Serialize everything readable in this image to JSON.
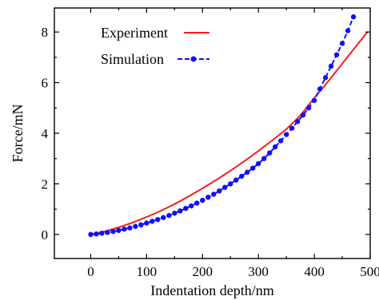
{
  "chart_data": {
    "type": "line",
    "xlabel": "Indentation depth/nm",
    "ylabel": "Force/mN",
    "xlim": [
      -65,
      500
    ],
    "ylim": [
      -0.95,
      8.95
    ],
    "x_ticks": [
      0,
      100,
      200,
      300,
      400,
      500
    ],
    "y_ticks": [
      0,
      2,
      4,
      6,
      8
    ],
    "grid": false,
    "legend_position": "top-left",
    "series": [
      {
        "name": "Experiment",
        "color": "#ff1a1a",
        "style": "solid-line",
        "x": [
          0,
          25,
          50,
          75,
          100,
          125,
          150,
          175,
          200,
          225,
          250,
          275,
          300,
          325,
          350,
          375,
          400,
          425,
          450,
          475,
          495
        ],
        "y": [
          0.0,
          0.12,
          0.28,
          0.47,
          0.69,
          0.93,
          1.2,
          1.5,
          1.82,
          2.16,
          2.52,
          2.9,
          3.3,
          3.72,
          4.16,
          4.7,
          5.4,
          6.05,
          6.75,
          7.45,
          8.0
        ]
      },
      {
        "name": "Simulation",
        "color": "#1010ff",
        "style": "dashed-line-with-dots",
        "x": [
          0,
          10,
          20,
          30,
          40,
          50,
          60,
          70,
          80,
          90,
          100,
          110,
          120,
          130,
          140,
          150,
          160,
          170,
          180,
          190,
          200,
          210,
          220,
          230,
          240,
          250,
          260,
          270,
          280,
          290,
          300,
          310,
          320,
          330,
          340,
          350,
          360,
          370,
          380,
          390,
          400,
          410,
          420,
          430,
          440,
          450,
          460,
          470
        ],
        "y": [
          0.0,
          0.02,
          0.05,
          0.08,
          0.12,
          0.16,
          0.21,
          0.26,
          0.32,
          0.38,
          0.45,
          0.52,
          0.59,
          0.67,
          0.75,
          0.84,
          0.93,
          1.03,
          1.13,
          1.24,
          1.35,
          1.47,
          1.59,
          1.72,
          1.86,
          2.0,
          2.15,
          2.3,
          2.46,
          2.62,
          2.8,
          3.0,
          3.22,
          3.46,
          3.7,
          3.95,
          4.2,
          4.46,
          4.72,
          5.0,
          5.3,
          5.75,
          6.2,
          6.65,
          7.1,
          7.55,
          8.05,
          8.6
        ]
      }
    ]
  }
}
